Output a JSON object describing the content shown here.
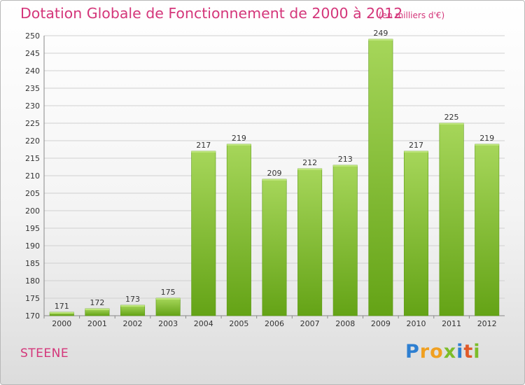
{
  "header": {
    "title": "Dotation Globale de Fonctionnement de 2000 à 2012",
    "subtitle": "(en milliers d'€)"
  },
  "footer": {
    "commune": "STEENE",
    "logo_text": "Proxiti"
  },
  "colors": {
    "title": "#d4367a",
    "bar_light": "#a6d65a",
    "bar_dark": "#64a316",
    "grid": "#d0d0d0"
  },
  "chart_data": {
    "type": "bar",
    "title": "Dotation Globale de Fonctionnement de 2000 à 2012",
    "subtitle": "(en milliers d'€)",
    "xlabel": "",
    "ylabel": "",
    "categories": [
      "2000",
      "2001",
      "2002",
      "2003",
      "2004",
      "2005",
      "2006",
      "2007",
      "2008",
      "2009",
      "2010",
      "2011",
      "2012"
    ],
    "values": [
      171,
      172,
      173,
      175,
      217,
      219,
      209,
      212,
      213,
      249,
      217,
      225,
      219
    ],
    "ylim": [
      170,
      250
    ],
    "yticks": [
      170,
      175,
      180,
      185,
      190,
      195,
      200,
      205,
      210,
      215,
      220,
      225,
      230,
      235,
      240,
      245,
      250
    ],
    "grid": true,
    "legend": "none"
  }
}
